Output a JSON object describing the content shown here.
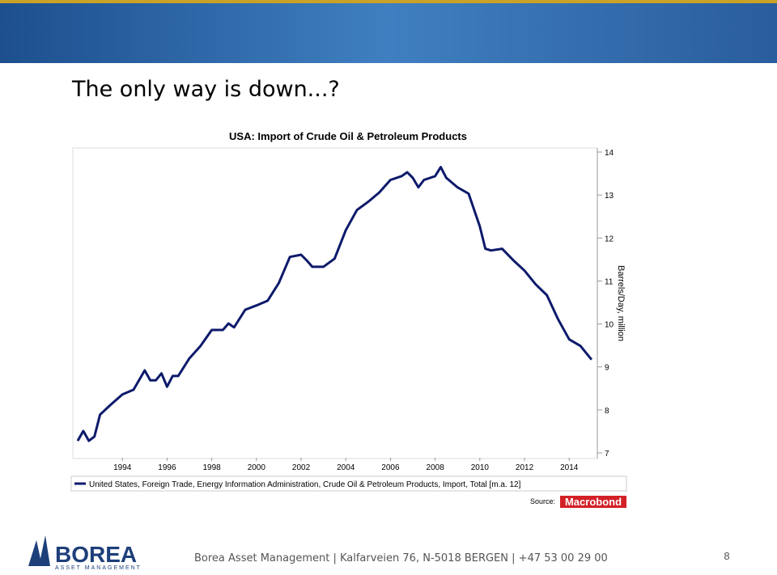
{
  "slide": {
    "title": "The only way is down...?"
  },
  "footer": {
    "text": "Borea Asset Management | Kalfarveien 76, N-5018 BERGEN | +47 53 00 29 00",
    "page": "8"
  },
  "logo": {
    "name": "BOREA",
    "tagline": "ASSET MANAGEMENT"
  },
  "chart_data": {
    "type": "line",
    "title": "USA: Import of Crude Oil & Petroleum Products",
    "y_label": "Barrels/Day, million",
    "source_label": "Source:",
    "source_name": "Macrobond",
    "x": [
      1992.0,
      1992.25,
      1992.5,
      1992.75,
      1993.0,
      1993.5,
      1994.0,
      1994.5,
      1995.0,
      1995.25,
      1995.5,
      1995.75,
      1996.0,
      1996.25,
      1996.5,
      1997.0,
      1997.5,
      1998.0,
      1998.5,
      1998.75,
      1999.0,
      1999.5,
      2000.0,
      2000.5,
      2001.0,
      2001.5,
      2002.0,
      2002.25,
      2002.5,
      2003.0,
      2003.5,
      2004.0,
      2004.5,
      2005.0,
      2005.5,
      2006.0,
      2006.5,
      2006.75,
      2007.0,
      2007.25,
      2007.5,
      2008.0,
      2008.25,
      2008.5,
      2009.0,
      2009.5,
      2010.0,
      2010.25,
      2010.5,
      2011.0,
      2011.5,
      2012.0,
      2012.5,
      2013.0,
      2013.5,
      2014.0,
      2014.5,
      2015.0
    ],
    "series": [
      {
        "name": "United States, Foreign Trade, Energy Information Administration, Crude Oil & Petroleum Products, Import, Total [m.a. 12]",
        "color": "#0d1a6b",
        "values": [
          7.28,
          7.51,
          7.28,
          7.38,
          7.89,
          8.13,
          8.36,
          8.47,
          8.92,
          8.69,
          8.69,
          8.85,
          8.54,
          8.79,
          8.79,
          9.2,
          9.49,
          9.86,
          9.86,
          10.01,
          9.92,
          10.33,
          10.43,
          10.54,
          10.95,
          11.56,
          11.61,
          11.48,
          11.33,
          11.33,
          11.52,
          12.18,
          12.65,
          12.84,
          13.06,
          13.35,
          13.44,
          13.53,
          13.4,
          13.18,
          13.35,
          13.44,
          13.65,
          13.4,
          13.18,
          13.03,
          12.27,
          11.75,
          11.71,
          11.75,
          11.48,
          11.24,
          10.92,
          10.67,
          10.11,
          9.64,
          9.49,
          9.17
        ]
      }
    ],
    "xlim": [
      1992.0,
      2015.15
    ],
    "xticks": [
      1994,
      1996,
      1998,
      2000,
      2002,
      2004,
      2006,
      2008,
      2010,
      2012,
      2014
    ],
    "ylim": [
      7,
      14
    ],
    "yticks": [
      7,
      8,
      9,
      10,
      11,
      12,
      13,
      14
    ]
  }
}
